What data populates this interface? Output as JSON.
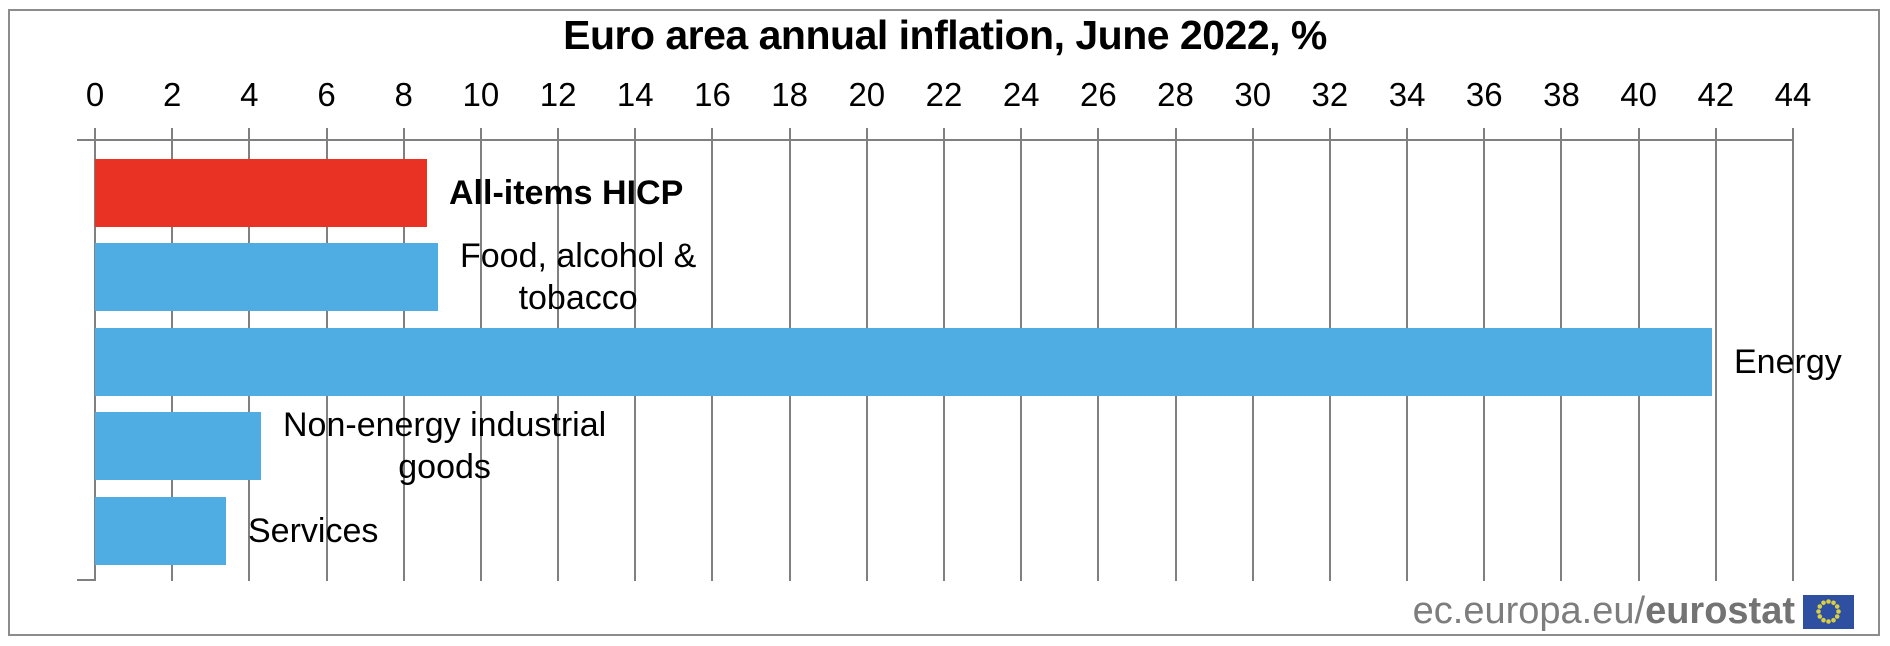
{
  "chart_data": {
    "type": "bar",
    "orientation": "horizontal",
    "title": "Euro area annual inflation, June 2022, %",
    "categories": [
      "All-items HICP",
      "Food, alcohol &\ntobacco",
      "Energy",
      "Non-energy industrial\ngoods",
      "Services"
    ],
    "values": [
      8.6,
      8.9,
      41.9,
      4.3,
      3.4
    ],
    "bar_colors": [
      "#e93223",
      "#4fade3",
      "#4fade3",
      "#4fade3",
      "#4fade3"
    ],
    "highlight_category": "All-items HICP",
    "xlabel": "",
    "ylabel": "",
    "xlim": [
      0,
      44
    ],
    "x_tick_step": 2,
    "x_ticks": [
      0,
      2,
      4,
      6,
      8,
      10,
      12,
      14,
      16,
      18,
      20,
      22,
      24,
      26,
      28,
      30,
      32,
      34,
      36,
      38,
      40,
      42,
      44
    ],
    "grid": true,
    "axis_position": "top",
    "grid_color": "#808080",
    "title_color": "#000000"
  },
  "footer": {
    "brand_prefix": "ec.europa.eu/",
    "brand_bold": "eurostat",
    "flag_icon": "eu-flag-icon",
    "text_color": "#7d7d7d",
    "flag_blue": "#2f4fa0",
    "flag_star_color": "#d8cf45"
  }
}
